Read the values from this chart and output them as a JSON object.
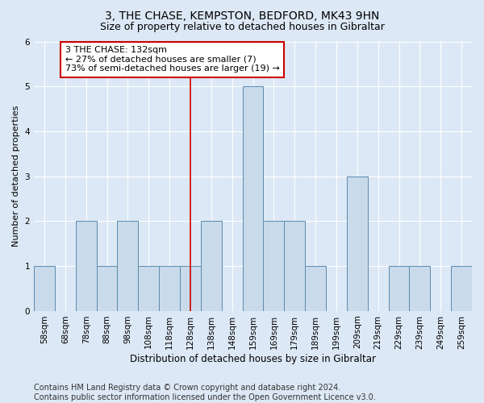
{
  "title": "3, THE CHASE, KEMPSTON, BEDFORD, MK43 9HN",
  "subtitle": "Size of property relative to detached houses in Gibraltar",
  "xlabel": "Distribution of detached houses by size in Gibraltar",
  "ylabel": "Number of detached properties",
  "categories": [
    "58sqm",
    "68sqm",
    "78sqm",
    "88sqm",
    "98sqm",
    "108sqm",
    "118sqm",
    "128sqm",
    "138sqm",
    "148sqm",
    "159sqm",
    "169sqm",
    "179sqm",
    "189sqm",
    "199sqm",
    "209sqm",
    "219sqm",
    "229sqm",
    "239sqm",
    "249sqm",
    "259sqm"
  ],
  "values": [
    1,
    0,
    2,
    1,
    2,
    1,
    1,
    1,
    2,
    0,
    5,
    2,
    2,
    1,
    0,
    3,
    0,
    1,
    1,
    0,
    1
  ],
  "bar_color": "#c9daea",
  "bar_edge_color": "#5a8ab0",
  "reference_line_x": 7,
  "reference_line_color": "#cc0000",
  "annotation_text": "3 THE CHASE: 132sqm\n← 27% of detached houses are smaller (7)\n73% of semi-detached houses are larger (19) →",
  "annotation_box_color": "#ffffff",
  "annotation_box_edge_color": "#cc0000",
  "ylim": [
    0,
    6
  ],
  "yticks": [
    0,
    1,
    2,
    3,
    4,
    5,
    6
  ],
  "footer": "Contains HM Land Registry data © Crown copyright and database right 2024.\nContains public sector information licensed under the Open Government Licence v3.0.",
  "background_color": "#dce8f5",
  "plot_background_color": "#dce8f5",
  "title_fontsize": 10,
  "subtitle_fontsize": 9,
  "xlabel_fontsize": 8.5,
  "ylabel_fontsize": 8,
  "tick_fontsize": 7.5,
  "footer_fontsize": 7,
  "annotation_fontsize": 8
}
